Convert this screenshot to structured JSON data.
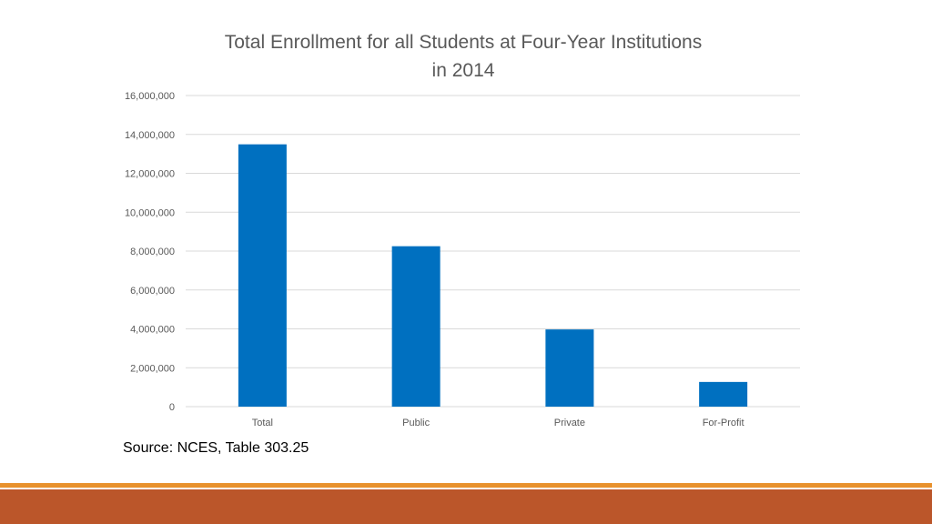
{
  "chart_data": {
    "type": "bar",
    "title_lines": [
      "Total Enrollment for all Students at Four-Year Institutions",
      "in 2014"
    ],
    "categories": [
      "Total",
      "Public",
      "Private",
      "For-Profit"
    ],
    "values": [
      13490000,
      8250000,
      3970000,
      1270000
    ],
    "ylim": [
      0,
      16000000
    ],
    "yticks": [
      "0",
      "2,000,000",
      "4,000,000",
      "6,000,000",
      "8,000,000",
      "10,000,000",
      "12,000,000",
      "14,000,000",
      "16,000,000"
    ],
    "ytick_values": [
      0,
      2000000,
      4000000,
      6000000,
      8000000,
      10000000,
      12000000,
      14000000,
      16000000
    ],
    "grid": true,
    "bar_color": "#0070c0"
  },
  "source": "Source: NCES, Table 303.25",
  "colors": {
    "footer_line": "#e8912c",
    "footer_band": "#bb562a"
  }
}
